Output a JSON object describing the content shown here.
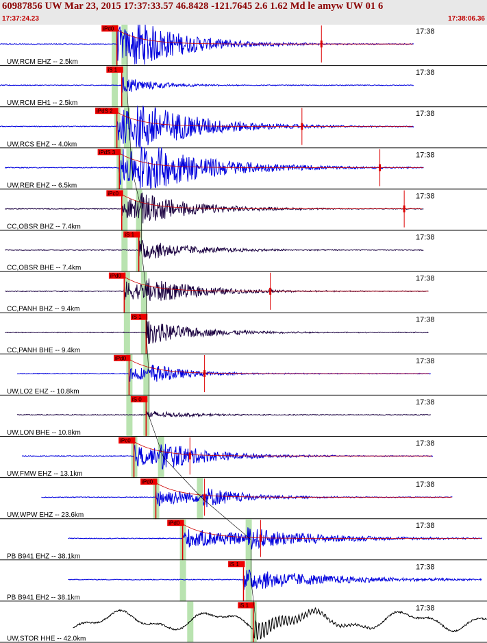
{
  "header": {
    "title": "60987856 UW Mar 23, 2015 17:37:33.57   46.8428 -121.7645  2.6 1.62 Md le amyw UW 01   6",
    "time_start": "17:37:24.23",
    "time_end": "17:38:06.36"
  },
  "panels": [
    {
      "label": "UW,RCM EHZ -- 2.5km",
      "time_label": "17:38",
      "phase_label": "iPd0",
      "color": "#0000dd",
      "onset": 0.24,
      "amp": 0.9,
      "sdelay": 0.035,
      "tail": 0.35,
      "blip": 0.66,
      "start": 0.0,
      "end": 0.85,
      "greens": [
        0.235,
        0.255
      ],
      "type": "z"
    },
    {
      "label": "UW,RCM EH1 -- 2.5km",
      "time_label": "17:38",
      "phase_label": "iS 1",
      "color": "#0000dd",
      "onset": 0.25,
      "amp": 0.45,
      "sdelay": 0.0,
      "tail": 0.2,
      "blip": null,
      "start": 0.0,
      "end": 0.85,
      "greens": [
        0.235,
        0.255
      ],
      "type": "h"
    },
    {
      "label": "UW,RCS EHZ -- 4.0km",
      "time_label": "17:38",
      "phase_label": "iPdS 2",
      "color": "#0000dd",
      "onset": 0.24,
      "amp": 0.95,
      "sdelay": 0.04,
      "tail": 0.4,
      "blip": 0.62,
      "start": 0.0,
      "end": 0.85,
      "greens": [
        0.24,
        0.26
      ],
      "type": "z"
    },
    {
      "label": "UW,RER EHZ -- 6.5km",
      "time_label": "17:38",
      "phase_label": "iPdS 3",
      "color": "#0000dd",
      "onset": 0.245,
      "amp": 0.95,
      "sdelay": 0.04,
      "tail": 0.45,
      "blip": 0.78,
      "start": 0.01,
      "end": 0.87,
      "greens": [
        0.245,
        0.265
      ],
      "type": "z"
    },
    {
      "label": "CC,OBSR BHZ -- 7.4km",
      "time_label": "17:38",
      "phase_label": "iPc0",
      "color": "#1a0040",
      "onset": 0.25,
      "amp": 0.6,
      "sdelay": 0.035,
      "tail": 0.35,
      "blip": 0.83,
      "start": 0.01,
      "end": 0.87,
      "greens": [
        0.255,
        0.285
      ],
      "type": "z"
    },
    {
      "label": "CC,OBSR BHE -- 7.4km",
      "time_label": "17:38",
      "phase_label": "iS 1",
      "color": "#1a0040",
      "onset": 0.285,
      "amp": 0.55,
      "sdelay": 0.0,
      "tail": 0.3,
      "blip": null,
      "start": 0.01,
      "end": 0.87,
      "greens": [
        0.255,
        0.285
      ],
      "type": "h"
    },
    {
      "label": "CC,PANH BHZ -- 9.4km",
      "time_label": "17:38",
      "phase_label": "iPd0",
      "color": "#1a0040",
      "onset": 0.255,
      "amp": 0.5,
      "sdelay": 0.045,
      "tail": 0.35,
      "blip": 0.555,
      "start": 0.01,
      "end": 0.88,
      "greens": [
        0.26,
        0.295
      ],
      "type": "z"
    },
    {
      "label": "CC,PANH BHE -- 9.4km",
      "time_label": "17:38",
      "phase_label": "iS 1",
      "color": "#1a0040",
      "onset": 0.3,
      "amp": 0.6,
      "sdelay": 0.0,
      "tail": 0.3,
      "blip": null,
      "start": 0.01,
      "end": 0.88,
      "greens": [
        0.26,
        0.295
      ],
      "type": "h"
    },
    {
      "label": "UW,LO2 EHZ -- 10.8km",
      "time_label": "17:38",
      "phase_label": "iPd0",
      "color": "#0000dd",
      "onset": 0.265,
      "amp": 0.4,
      "sdelay": 0.045,
      "tail": 0.25,
      "blip": 0.42,
      "start": 0.035,
      "end": 0.885,
      "greens": [
        0.265,
        0.3
      ],
      "type": "z"
    },
    {
      "label": "UW,LON BHE -- 10.8km",
      "time_label": "17:38",
      "phase_label": "iS 0",
      "color": "#1a0040",
      "onset": 0.3,
      "amp": 0.2,
      "sdelay": 0.0,
      "tail": 0.25,
      "blip": null,
      "start": 0.035,
      "end": 0.885,
      "greens": [
        0.265,
        0.3
      ],
      "type": "h"
    },
    {
      "label": "UW,FMW EHZ -- 13.1km",
      "time_label": "17:38",
      "phase_label": "iPc0",
      "color": "#0000dd",
      "onset": 0.275,
      "amp": 0.55,
      "sdelay": 0.055,
      "tail": 0.35,
      "blip": 0.39,
      "start": 0.045,
      "end": 0.89,
      "greens": [
        0.275,
        0.33
      ],
      "type": "z"
    },
    {
      "label": "UW,WPW EHZ -- 23.6km",
      "time_label": "17:38",
      "phase_label": "iPd0",
      "color": "#0000dd",
      "onset": 0.32,
      "amp": 0.5,
      "sdelay": 0.095,
      "tail": 0.3,
      "blip": 0.42,
      "start": 0.085,
      "end": 0.93,
      "greens": [
        0.32,
        0.41
      ],
      "type": "z"
    },
    {
      "label": "PB B941 EHZ -- 38.1km",
      "time_label": "17:38",
      "phase_label": "iPd0",
      "color": "#0000dd",
      "onset": 0.375,
      "amp": 0.5,
      "sdelay": 0.13,
      "tail": 0.5,
      "blip": 0.535,
      "start": 0.14,
      "end": 0.99,
      "greens": [
        0.375,
        0.51
      ],
      "type": "z"
    },
    {
      "label": "PB B941 EH2 -- 38.1km",
      "time_label": "17:38",
      "phase_label": "iS 1",
      "color": "#0000dd",
      "onset": 0.5,
      "amp": 0.55,
      "sdelay": 0.0,
      "tail": 0.5,
      "blip": null,
      "start": 0.14,
      "end": 0.99,
      "greens": [
        0.375,
        0.51
      ],
      "type": "h"
    },
    {
      "label": "UW,STOR HHE -- 42.0km",
      "time_label": "17:38",
      "phase_label": "iS 1",
      "color": "#000000",
      "onset": 0.52,
      "amp": 0.5,
      "sdelay": 0.0,
      "tail": 0.3,
      "blip": null,
      "start": 0.15,
      "end": 1.0,
      "greens": [
        0.39,
        0.52
      ],
      "type": "long"
    }
  ]
}
